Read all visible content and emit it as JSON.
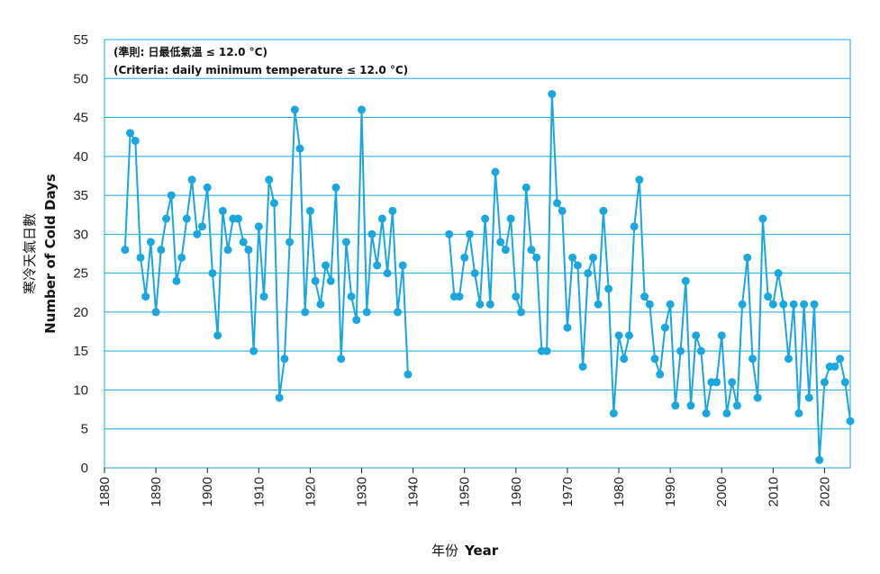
{
  "chart_data": {
    "type": "line",
    "annotation_zh": "(準則: 日最低氣溫 ≤ 12.0 °C)",
    "annotation_en": "(Criteria: daily minimum temperature ≤ 12.0 °C)",
    "xlabel_zh": "年份",
    "xlabel_en": "Year",
    "ylabel_zh": "寒冷天氣日數",
    "ylabel_en": "Number of Cold Days",
    "xlim": [
      1880,
      2025
    ],
    "ylim": [
      0,
      55
    ],
    "x_ticks": [
      1880,
      1890,
      1900,
      1910,
      1920,
      1930,
      1940,
      1950,
      1960,
      1970,
      1980,
      1990,
      2000,
      2010,
      2020
    ],
    "y_ticks": [
      0,
      5,
      10,
      15,
      20,
      25,
      30,
      35,
      40,
      45,
      50,
      55
    ],
    "grid": "horizontal",
    "series_color": "#1aa7e0",
    "series": [
      {
        "name": "Number of Cold Days",
        "segments": [
          {
            "x": [
              1884,
              1885,
              1886,
              1887,
              1888,
              1889,
              1890,
              1891,
              1892,
              1893,
              1894,
              1895,
              1896,
              1897,
              1898,
              1899,
              1900,
              1901,
              1902,
              1903,
              1904,
              1905,
              1906,
              1907,
              1908,
              1909,
              1910,
              1911,
              1912,
              1913,
              1914,
              1915,
              1916,
              1917,
              1918,
              1919,
              1920,
              1921,
              1922,
              1923,
              1924,
              1925,
              1926,
              1927,
              1928,
              1929,
              1930,
              1931,
              1932,
              1933,
              1934,
              1935,
              1936,
              1937,
              1938,
              1939
            ],
            "y": [
              28,
              43,
              42,
              27,
              22,
              29,
              20,
              28,
              32,
              35,
              24,
              27,
              32,
              37,
              30,
              31,
              36,
              25,
              17,
              33,
              28,
              32,
              32,
              29,
              28,
              15,
              31,
              22,
              37,
              34,
              9,
              14,
              29,
              46,
              41,
              20,
              33,
              24,
              21,
              26,
              24,
              36,
              14,
              29,
              22,
              19,
              46,
              20,
              30,
              26,
              32,
              25,
              33,
              20,
              26,
              12
            ]
          },
          {
            "x": [
              1947,
              1948,
              1949,
              1950,
              1951,
              1952,
              1953,
              1954,
              1955,
              1956,
              1957,
              1958,
              1959,
              1960,
              1961,
              1962,
              1963,
              1964,
              1965,
              1966,
              1967,
              1968,
              1969,
              1970,
              1971,
              1972,
              1973,
              1974,
              1975,
              1976,
              1977,
              1978,
              1979,
              1980,
              1981,
              1982,
              1983,
              1984,
              1985,
              1986,
              1987,
              1988,
              1989,
              1990,
              1991,
              1992,
              1993,
              1994,
              1995,
              1996,
              1997,
              1998,
              1999,
              2000,
              2001,
              2002,
              2003,
              2004,
              2005,
              2006,
              2007,
              2008,
              2009,
              2010,
              2011,
              2012,
              2013,
              2014,
              2015,
              2016,
              2017,
              2018,
              2019,
              2020,
              2021,
              2022,
              2023,
              2024,
              2025
            ],
            "y": [
              30,
              22,
              22,
              27,
              30,
              25,
              21,
              32,
              21,
              38,
              29,
              28,
              32,
              22,
              20,
              36,
              28,
              27,
              15,
              15,
              48,
              34,
              33,
              18,
              27,
              26,
              13,
              25,
              27,
              21,
              33,
              23,
              7,
              17,
              14,
              17,
              31,
              37,
              22,
              21,
              14,
              12,
              18,
              21,
              8,
              15,
              24,
              8,
              17,
              15,
              7,
              11,
              11,
              17,
              7,
              11,
              8,
              21,
              27,
              14,
              9,
              32,
              22,
              21,
              25,
              21,
              14,
              21,
              7,
              21,
              9,
              21,
              1,
              11,
              13,
              13,
              14,
              11,
              6
            ]
          }
        ]
      }
    ]
  }
}
